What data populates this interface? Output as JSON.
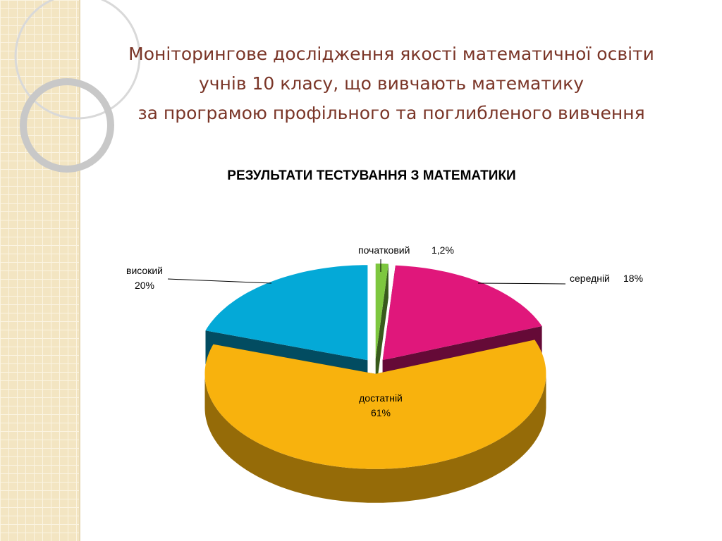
{
  "slide_title": [
    "Моніторингове дослідження якості математичної освіти",
    "учнів 10 класу, що вивчають математику",
    "за програмою профільного та поглибленого вивчення"
  ],
  "chart_data": {
    "type": "pie3d",
    "title": "РЕЗУЛЬТАТИ ТЕСТУВАННЯ З МАТЕМАТИКИ",
    "categories": [
      "початковий",
      "середній",
      "достатній",
      "високий"
    ],
    "values": [
      1.2,
      18,
      61,
      20
    ],
    "value_labels": [
      "1,2%",
      "18%",
      "61%",
      "20%"
    ],
    "colors": [
      "#7dc73f",
      "#e0177b",
      "#f8b20d",
      "#04a9d7"
    ]
  }
}
